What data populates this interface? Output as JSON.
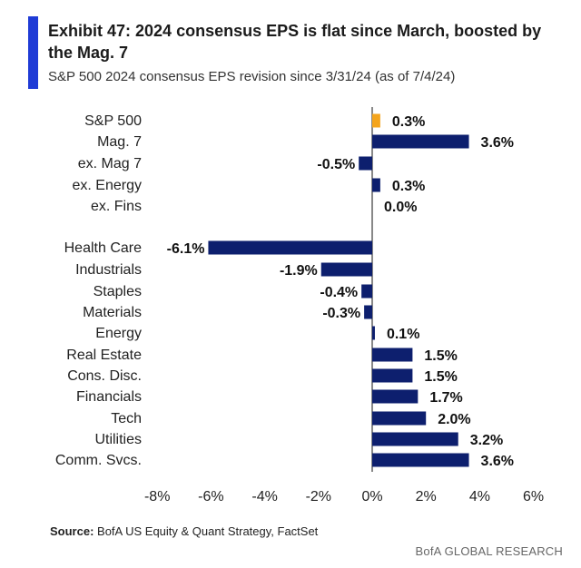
{
  "header": {
    "title": "Exhibit 47: 2024 consensus EPS is flat since March, boosted by the Mag. 7",
    "subtitle": "S&P 500 2024 consensus EPS revision since 3/31/24 (as of 7/4/24)"
  },
  "footer": {
    "source_label": "Source:",
    "source_text": "BofA US Equity & Quant Strategy, FactSet",
    "brand": "BofA GLOBAL RESEARCH"
  },
  "colors": {
    "accent": "#1f3bd6",
    "bar": "#0d1f6e",
    "highlight_bar": "#f4a41c"
  },
  "chart_data": {
    "type": "bar",
    "orientation": "horizontal",
    "title": "",
    "xlabel": "",
    "ylabel": "",
    "xlim": [
      -8,
      6
    ],
    "x_ticks": [
      "-8%",
      "-6%",
      "-4%",
      "-2%",
      "0%",
      "2%",
      "4%",
      "6%"
    ],
    "x_tick_values": [
      -8,
      -6,
      -4,
      -2,
      0,
      2,
      4,
      6
    ],
    "grid": false,
    "highlight_category": "S&P 500",
    "categories": [
      "S&P 500",
      "Mag. 7",
      "ex. Mag 7",
      "ex. Energy",
      "ex. Fins",
      "Health Care",
      "Industrials",
      "Staples",
      "Materials",
      "Energy",
      "Real Estate",
      "Cons. Disc.",
      "Financials",
      "Tech",
      "Utilities",
      "Comm. Svcs."
    ],
    "values": [
      0.3,
      3.6,
      -0.5,
      0.3,
      0.0,
      -6.1,
      -1.9,
      -0.4,
      -0.3,
      0.1,
      1.5,
      1.5,
      1.7,
      2.0,
      3.2,
      3.6
    ],
    "value_labels": [
      "0.3%",
      "3.6%",
      "-0.5%",
      "0.3%",
      "0.0%",
      "-6.1%",
      "-1.9%",
      "-0.4%",
      "-0.3%",
      "0.1%",
      "1.5%",
      "1.5%",
      "1.7%",
      "2.0%",
      "3.2%",
      "3.6%"
    ]
  }
}
